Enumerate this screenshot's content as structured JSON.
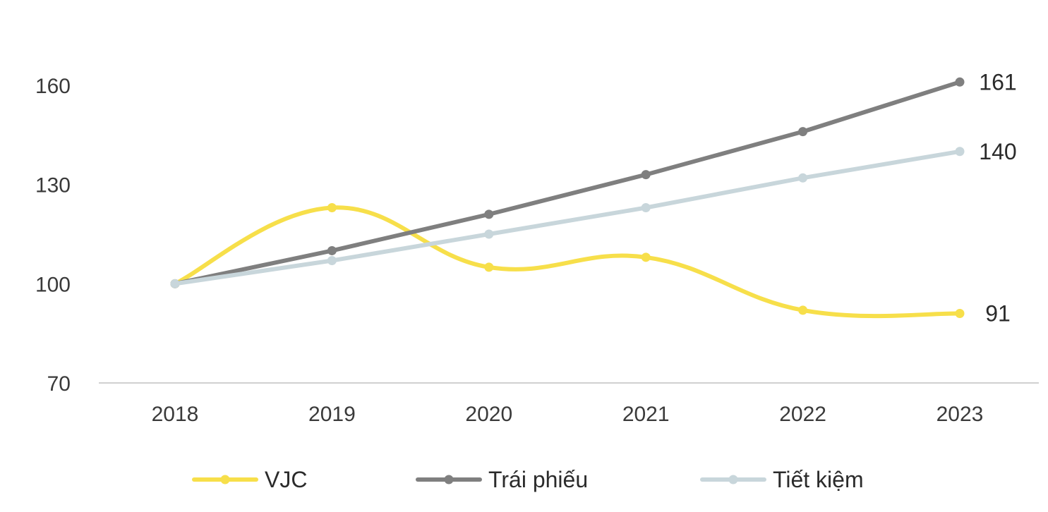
{
  "chart_data": {
    "type": "line",
    "title": "",
    "xlabel": "",
    "ylabel": "",
    "categories": [
      "2018",
      "2019",
      "2020",
      "2021",
      "2022",
      "2023"
    ],
    "ylim": [
      70,
      160
    ],
    "yticks": [
      "160",
      "130",
      "100",
      "70"
    ],
    "grid": false,
    "legend_position": "bottom",
    "series": [
      {
        "name": "VJC",
        "color": "#f7df4a",
        "smooth": true,
        "values": [
          100,
          123,
          105,
          108,
          92,
          91
        ],
        "end_label": "91"
      },
      {
        "name": "Trái phiếu",
        "color": "#7f7f7f",
        "smooth": false,
        "values": [
          100,
          110,
          121,
          133,
          146,
          161
        ],
        "end_label": "161"
      },
      {
        "name": "Tiết kiệm",
        "color": "#c8d6db",
        "smooth": false,
        "values": [
          100,
          107,
          115,
          123,
          132,
          140
        ],
        "end_label": "140"
      }
    ]
  }
}
